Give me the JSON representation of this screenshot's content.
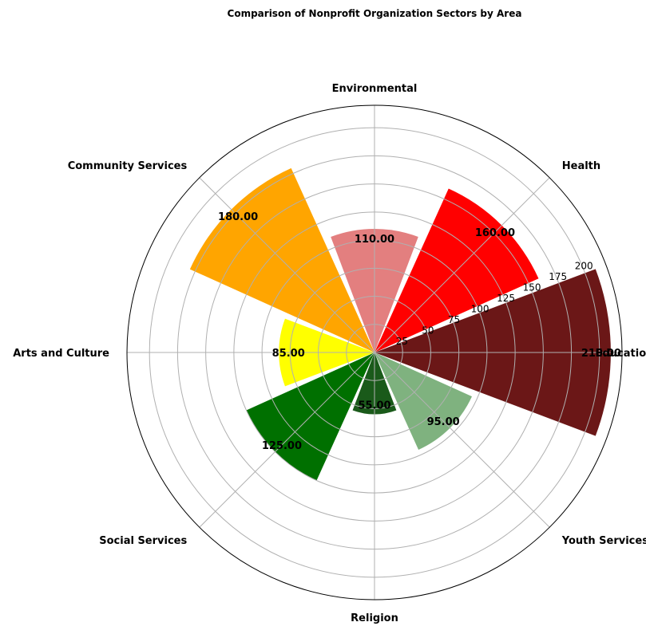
{
  "chart_data": {
    "type": "polar-bar",
    "title": "Comparison of Nonprofit Organization Sectors by Area",
    "categories": [
      "Education",
      "Health",
      "Environmental",
      "Community Services",
      "Arts and Culture",
      "Social Services",
      "Religion",
      "Youth Services"
    ],
    "values": [
      210,
      160,
      110,
      180,
      85,
      125,
      55,
      95
    ],
    "value_labels": [
      "210.00",
      "160.00",
      "110.00",
      "180.00",
      "85.00",
      "125.00",
      "55.00",
      "95.00"
    ],
    "colors": [
      "#6b1717",
      "#ff0000",
      "#e37f7f",
      "#ffa500",
      "#ffff00",
      "#007000",
      "#1a5a1a",
      "#7fb27f"
    ],
    "radial_ticks": [
      "25",
      "50",
      "75",
      "100",
      "125",
      "150",
      "175",
      "200"
    ],
    "radial_tick_values": [
      25,
      50,
      75,
      100,
      125,
      150,
      175,
      200
    ],
    "rlim": [
      0,
      220
    ],
    "grid": true
  }
}
